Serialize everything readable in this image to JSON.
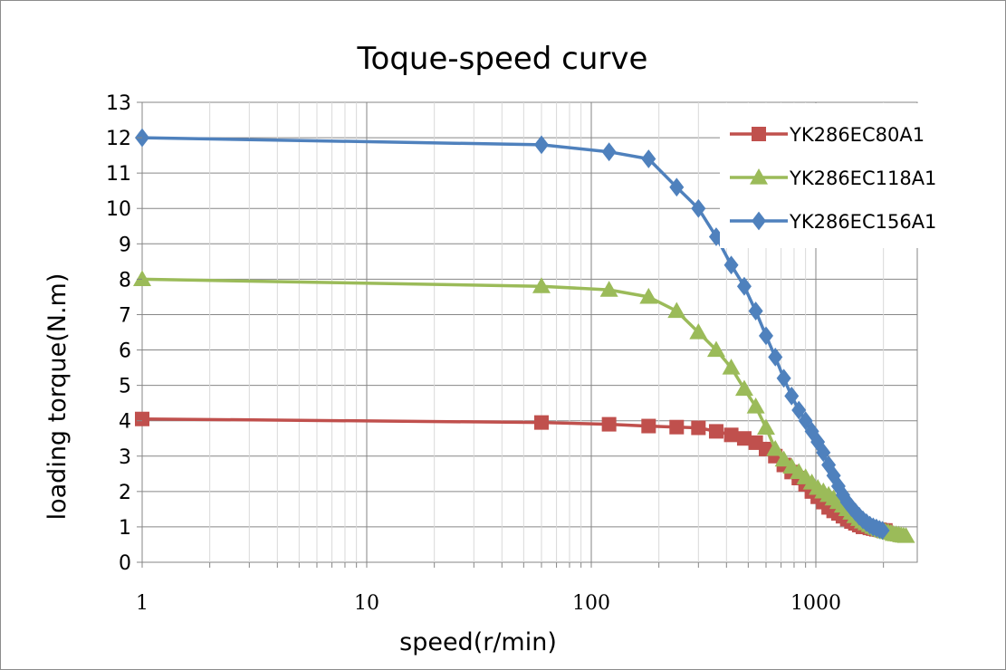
{
  "chart_data": {
    "type": "line",
    "title": "Toque-speed curve",
    "xlabel": "speed(r/min)",
    "ylabel": "loading  torque(N.m)",
    "xscale": "log",
    "xlim": [
      1,
      3000
    ],
    "ylim": [
      0,
      13
    ],
    "xticks": [
      "1",
      "10",
      "100",
      "1000"
    ],
    "yticks": [
      "0",
      "1",
      "2",
      "3",
      "4",
      "5",
      "6",
      "7",
      "8",
      "9",
      "10",
      "11",
      "12",
      "13"
    ],
    "grid": true,
    "legend_position": "right",
    "series": [
      {
        "name": "YK286EC80A1",
        "color": "#c0504d",
        "marker": "square",
        "x": [
          1,
          60,
          120,
          180,
          240,
          300,
          360,
          420,
          480,
          540,
          600,
          660,
          720,
          780,
          840,
          900,
          960,
          1020,
          1080,
          1140,
          1200,
          1260,
          1320,
          1380,
          1440,
          1500,
          1560,
          1620,
          1680,
          1740,
          1800,
          1860,
          1920,
          1980,
          2040
        ],
        "y": [
          4.05,
          3.95,
          3.9,
          3.85,
          3.82,
          3.8,
          3.7,
          3.6,
          3.5,
          3.38,
          3.2,
          3.0,
          2.75,
          2.55,
          2.38,
          2.2,
          2.0,
          1.85,
          1.7,
          1.55,
          1.45,
          1.38,
          1.3,
          1.22,
          1.15,
          1.1,
          1.05,
          1.0,
          1.0,
          0.97,
          0.95,
          0.93,
          0.92,
          0.9,
          0.9
        ]
      },
      {
        "name": "YK286EC118A1",
        "color": "#9bbb59",
        "marker": "triangle",
        "x": [
          1,
          60,
          120,
          180,
          240,
          300,
          360,
          420,
          480,
          540,
          600,
          660,
          720,
          780,
          840,
          900,
          960,
          1020,
          1080,
          1140,
          1200,
          1260,
          1320,
          1380,
          1440,
          1500,
          1560,
          1620,
          1680,
          1740,
          1800,
          1860,
          1920,
          1980,
          2040,
          2100,
          2160,
          2220,
          2280,
          2340,
          2400,
          2460,
          2520
        ],
        "y": [
          8.0,
          7.8,
          7.7,
          7.5,
          7.1,
          6.5,
          6.0,
          5.5,
          4.9,
          4.4,
          3.8,
          3.2,
          2.9,
          2.7,
          2.55,
          2.4,
          2.25,
          2.1,
          2.0,
          1.9,
          1.8,
          1.7,
          1.6,
          1.5,
          1.4,
          1.3,
          1.22,
          1.15,
          1.1,
          1.05,
          1.0,
          0.97,
          0.93,
          0.9,
          0.87,
          0.85,
          0.83,
          0.8,
          0.79,
          0.78,
          0.76,
          0.75,
          0.74
        ]
      },
      {
        "name": "YK286EC156A1",
        "color": "#4f81bd",
        "marker": "diamond",
        "x": [
          1,
          60,
          120,
          180,
          240,
          300,
          360,
          420,
          480,
          540,
          600,
          660,
          720,
          780,
          840,
          900,
          960,
          1020,
          1080,
          1140,
          1200,
          1260,
          1320,
          1380,
          1440,
          1500,
          1560,
          1620,
          1680,
          1740,
          1800,
          1860,
          1920,
          1980
        ],
        "y": [
          12.0,
          11.8,
          11.6,
          11.4,
          10.6,
          10.0,
          9.2,
          8.4,
          7.8,
          7.1,
          6.4,
          5.8,
          5.2,
          4.7,
          4.3,
          4.0,
          3.7,
          3.4,
          3.1,
          2.75,
          2.45,
          2.15,
          1.9,
          1.7,
          1.55,
          1.42,
          1.3,
          1.2,
          1.12,
          1.05,
          1.0,
          0.97,
          0.93,
          0.9
        ]
      }
    ]
  }
}
